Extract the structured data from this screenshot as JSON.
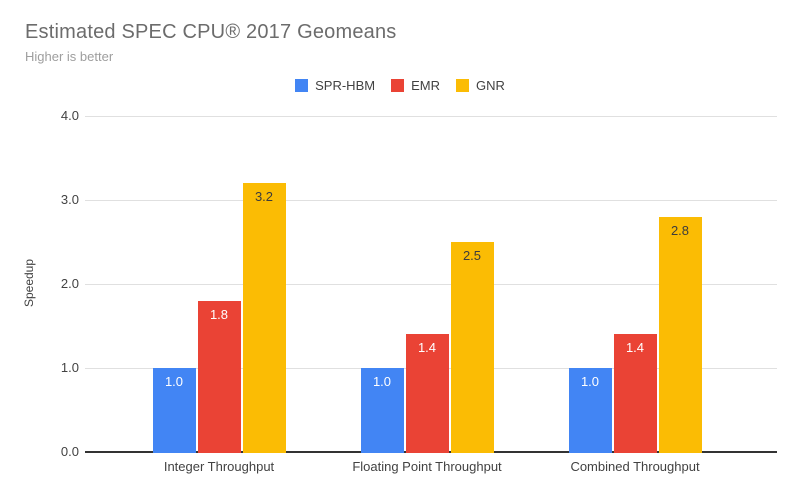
{
  "chart_data": {
    "type": "bar",
    "title": "Estimated SPEC CPU® 2017 Geomeans",
    "subtitle": "Higher is better",
    "categories": [
      "Integer Throughput",
      "Floating Point Throughput",
      "Combined Throughput"
    ],
    "series": [
      {
        "name": "SPR-HBM",
        "color": "#4285F4",
        "value_label_color": "#ffffff",
        "values": [
          1.0,
          1.0,
          1.0
        ]
      },
      {
        "name": "EMR",
        "color": "#EA4335",
        "value_label_color": "#ffffff",
        "values": [
          1.8,
          1.4,
          1.4
        ]
      },
      {
        "name": "GNR",
        "color": "#FBBC04",
        "value_label_color": "#3c3c3c",
        "values": [
          3.2,
          2.5,
          2.8
        ]
      }
    ],
    "xlabel": "",
    "ylabel": "Speedup",
    "ylim": [
      0,
      4
    ],
    "ytick_labels": [
      "0.0",
      "1.0",
      "2.0",
      "3.0",
      "4.0"
    ],
    "grid": true,
    "legend_position": "top",
    "value_labels": "inside-top, one decimal"
  },
  "colors": {
    "grid": "#e0e0e0",
    "baseline": "#333333",
    "title_text": "#6c6c6c",
    "subtitle_text": "#9e9e9e",
    "axis_text": "#424242"
  }
}
